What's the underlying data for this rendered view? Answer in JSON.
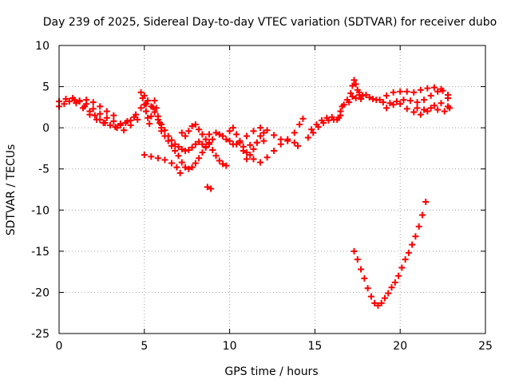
{
  "chart_data": {
    "type": "scatter",
    "title": "Day 239 of 2025, Sidereal Day-to-day VTEC variation (SDTVAR) for receiver dubo",
    "xlabel": "GPS time / hours",
    "ylabel": "SDTVAR / TECUs",
    "xlim": [
      0,
      25
    ],
    "ylim": [
      -25,
      10
    ],
    "xticks": [
      0,
      5,
      10,
      15,
      20,
      25
    ],
    "yticks": [
      -25,
      -20,
      -15,
      -10,
      -5,
      0,
      5,
      10
    ],
    "grid": true,
    "marker": "+",
    "series_color": "#ff0000",
    "series": [
      {
        "name": "SDTVAR",
        "points": [
          [
            0.0,
            2.6
          ],
          [
            0.3,
            2.9
          ],
          [
            0.6,
            3.2
          ],
          [
            0.9,
            3.4
          ],
          [
            1.2,
            3.2
          ],
          [
            1.5,
            2.6
          ],
          [
            1.8,
            2.0
          ],
          [
            2.1,
            1.5
          ],
          [
            2.4,
            1.0
          ],
          [
            2.7,
            0.6
          ],
          [
            3.0,
            0.3
          ],
          [
            3.3,
            0.1
          ],
          [
            3.6,
            0.3
          ],
          [
            3.9,
            0.6
          ],
          [
            4.2,
            0.9
          ],
          [
            4.5,
            1.6
          ],
          [
            4.8,
            2.4
          ],
          [
            5.1,
            2.9
          ],
          [
            0.0,
            3.2
          ],
          [
            0.4,
            3.5
          ],
          [
            0.8,
            3.6
          ],
          [
            1.2,
            3.3
          ],
          [
            1.6,
            2.9
          ],
          [
            2.0,
            2.3
          ],
          [
            2.4,
            1.7
          ],
          [
            2.8,
            1.2
          ],
          [
            3.2,
            0.8
          ],
          [
            3.6,
            0.5
          ],
          [
            4.0,
            0.8
          ],
          [
            4.4,
            1.3
          ],
          [
            1.0,
            3.0
          ],
          [
            1.4,
            2.4
          ],
          [
            1.8,
            1.6
          ],
          [
            2.2,
            1.0
          ],
          [
            2.6,
            0.6
          ],
          [
            3.0,
            0.3
          ],
          [
            3.4,
            0.0
          ],
          [
            3.8,
            -0.3
          ],
          [
            4.2,
            0.3
          ],
          [
            4.6,
            1.0
          ],
          [
            1.6,
            3.4
          ],
          [
            2.0,
            3.1
          ],
          [
            2.4,
            2.6
          ],
          [
            2.8,
            2.0
          ],
          [
            3.2,
            1.5
          ],
          [
            4.8,
            4.3
          ],
          [
            4.9,
            3.6
          ],
          [
            5.0,
            2.8
          ],
          [
            5.1,
            2.0
          ],
          [
            5.2,
            1.2
          ],
          [
            5.3,
            0.5
          ],
          [
            5.4,
            1.4
          ],
          [
            5.5,
            2.5
          ],
          [
            5.6,
            3.3
          ],
          [
            5.7,
            2.4
          ],
          [
            5.8,
            1.4
          ],
          [
            5.9,
            0.6
          ],
          [
            6.0,
            0.0
          ],
          [
            5.0,
            3.9
          ],
          [
            5.2,
            3.3
          ],
          [
            5.4,
            2.6
          ],
          [
            5.6,
            1.9
          ],
          [
            5.8,
            1.0
          ],
          [
            6.0,
            0.4
          ],
          [
            6.2,
            -0.3
          ],
          [
            6.4,
            -1.0
          ],
          [
            6.6,
            -1.5
          ],
          [
            6.8,
            -2.0
          ],
          [
            7.0,
            -2.3
          ],
          [
            7.2,
            -2.6
          ],
          [
            7.4,
            -2.8
          ],
          [
            7.6,
            -2.7
          ],
          [
            7.8,
            -2.4
          ],
          [
            8.0,
            -2.0
          ],
          [
            8.2,
            -1.7
          ],
          [
            8.4,
            -2.0
          ],
          [
            8.6,
            -2.3
          ],
          [
            6.0,
            -0.4
          ],
          [
            6.2,
            -1.0
          ],
          [
            6.4,
            -1.6
          ],
          [
            6.6,
            -2.2
          ],
          [
            6.8,
            -2.8
          ],
          [
            7.0,
            -3.4
          ],
          [
            7.2,
            -4.2
          ],
          [
            7.4,
            -4.8
          ],
          [
            7.6,
            -5.0
          ],
          [
            7.8,
            -4.8
          ],
          [
            8.0,
            -4.3
          ],
          [
            8.2,
            -3.7
          ],
          [
            8.4,
            -3.0
          ],
          [
            8.6,
            -2.4
          ],
          [
            8.8,
            -1.8
          ],
          [
            9.0,
            -1.4
          ],
          [
            5.0,
            -3.3
          ],
          [
            5.4,
            -3.5
          ],
          [
            5.8,
            -3.7
          ],
          [
            6.2,
            -3.9
          ],
          [
            6.6,
            -4.3
          ],
          [
            6.9,
            -4.8
          ],
          [
            7.1,
            -5.5
          ],
          [
            7.2,
            -0.6
          ],
          [
            7.4,
            -1.0
          ],
          [
            7.6,
            -0.4
          ],
          [
            7.8,
            0.2
          ],
          [
            8.0,
            0.4
          ],
          [
            8.2,
            -0.2
          ],
          [
            8.4,
            -0.8
          ],
          [
            8.6,
            -1.4
          ],
          [
            8.8,
            -2.0
          ],
          [
            9.0,
            -2.7
          ],
          [
            9.2,
            -3.4
          ],
          [
            9.4,
            -4.0
          ],
          [
            9.6,
            -4.4
          ],
          [
            9.8,
            -4.6
          ],
          [
            8.8,
            -0.8
          ],
          [
            9.2,
            -0.6
          ],
          [
            9.6,
            -1.0
          ],
          [
            10.0,
            -1.6
          ],
          [
            10.4,
            -2.0
          ],
          [
            10.8,
            -2.3
          ],
          [
            11.2,
            -2.1
          ],
          [
            11.6,
            -1.8
          ],
          [
            12.0,
            -1.6
          ],
          [
            9.4,
            -0.8
          ],
          [
            9.8,
            -1.4
          ],
          [
            10.2,
            -2.0
          ],
          [
            10.6,
            -1.6
          ],
          [
            11.0,
            -1.0
          ],
          [
            11.4,
            -0.4
          ],
          [
            11.8,
            0.0
          ],
          [
            12.2,
            -0.3
          ],
          [
            12.6,
            -0.9
          ],
          [
            13.0,
            -1.4
          ],
          [
            13.4,
            -1.6
          ],
          [
            13.8,
            -1.8
          ],
          [
            14.0,
            -2.2
          ],
          [
            10.0,
            -0.4
          ],
          [
            10.2,
            0.0
          ],
          [
            10.4,
            -0.8
          ],
          [
            10.6,
            -1.8
          ],
          [
            10.8,
            -2.8
          ],
          [
            11.0,
            -3.8
          ],
          [
            11.2,
            -3.3
          ],
          [
            11.4,
            -2.6
          ],
          [
            11.6,
            -1.8
          ],
          [
            11.8,
            -1.0
          ],
          [
            12.0,
            -0.6
          ],
          [
            11.0,
            -3.0
          ],
          [
            11.4,
            -3.8
          ],
          [
            11.8,
            -4.2
          ],
          [
            12.2,
            -3.6
          ],
          [
            12.6,
            -2.8
          ],
          [
            13.0,
            -2.0
          ],
          [
            13.4,
            -1.4
          ],
          [
            13.8,
            -0.6
          ],
          [
            14.1,
            0.4
          ],
          [
            14.3,
            1.1
          ],
          [
            8.7,
            -7.2
          ],
          [
            8.9,
            -7.4
          ],
          [
            14.6,
            -1.2
          ],
          [
            14.9,
            -0.6
          ],
          [
            15.2,
            0.1
          ],
          [
            15.5,
            0.6
          ],
          [
            15.8,
            0.9
          ],
          [
            16.1,
            1.0
          ],
          [
            16.4,
            1.2
          ],
          [
            14.8,
            -0.2
          ],
          [
            15.1,
            0.4
          ],
          [
            15.4,
            0.9
          ],
          [
            15.7,
            1.2
          ],
          [
            16.0,
            1.3
          ],
          [
            16.3,
            1.0
          ],
          [
            16.5,
            1.5
          ],
          [
            16.5,
            2.0
          ],
          [
            16.7,
            2.8
          ],
          [
            16.9,
            3.4
          ],
          [
            17.1,
            4.2
          ],
          [
            17.2,
            5.1
          ],
          [
            17.3,
            5.8
          ],
          [
            17.4,
            5.3
          ],
          [
            17.5,
            4.6
          ],
          [
            17.6,
            4.0
          ],
          [
            17.7,
            3.5
          ],
          [
            16.6,
            2.6
          ],
          [
            17.0,
            3.1
          ],
          [
            17.4,
            3.6
          ],
          [
            17.8,
            3.9
          ],
          [
            18.2,
            3.7
          ],
          [
            18.6,
            3.4
          ],
          [
            19.0,
            3.1
          ],
          [
            19.4,
            3.0
          ],
          [
            19.8,
            3.2
          ],
          [
            20.2,
            3.4
          ],
          [
            20.6,
            3.3
          ],
          [
            21.0,
            3.1
          ],
          [
            21.4,
            3.4
          ],
          [
            21.8,
            3.9
          ],
          [
            22.2,
            4.4
          ],
          [
            22.5,
            4.5
          ],
          [
            22.8,
            3.6
          ],
          [
            17.2,
            3.8
          ],
          [
            17.6,
            4.3
          ],
          [
            18.0,
            4.0
          ],
          [
            18.4,
            3.5
          ],
          [
            18.8,
            3.4
          ],
          [
            19.2,
            3.9
          ],
          [
            19.6,
            4.3
          ],
          [
            20.0,
            4.4
          ],
          [
            20.4,
            4.4
          ],
          [
            20.8,
            4.3
          ],
          [
            19.2,
            2.4
          ],
          [
            19.6,
            2.8
          ],
          [
            20.0,
            2.9
          ],
          [
            20.4,
            2.3
          ],
          [
            20.8,
            1.9
          ],
          [
            21.2,
            1.6
          ],
          [
            21.6,
            2.0
          ],
          [
            22.0,
            2.7
          ],
          [
            22.4,
            3.0
          ],
          [
            22.8,
            2.6
          ],
          [
            21.0,
            2.4
          ],
          [
            21.4,
            2.2
          ],
          [
            21.8,
            2.4
          ],
          [
            22.2,
            2.2
          ],
          [
            22.6,
            2.0
          ],
          [
            22.9,
            2.4
          ],
          [
            21.2,
            4.6
          ],
          [
            21.6,
            4.8
          ],
          [
            22.0,
            4.9
          ],
          [
            22.4,
            4.7
          ],
          [
            22.8,
            4.0
          ],
          [
            17.3,
            -15.0
          ],
          [
            17.5,
            -16.0
          ],
          [
            17.7,
            -17.2
          ],
          [
            17.9,
            -18.3
          ],
          [
            18.1,
            -19.5
          ],
          [
            18.3,
            -20.5
          ],
          [
            18.5,
            -21.3
          ],
          [
            18.7,
            -21.6
          ],
          [
            18.9,
            -21.3
          ],
          [
            19.1,
            -20.7
          ],
          [
            19.3,
            -20.1
          ],
          [
            19.5,
            -19.4
          ],
          [
            19.7,
            -18.8
          ],
          [
            19.9,
            -18.0
          ],
          [
            20.1,
            -17.0
          ],
          [
            20.3,
            -16.0
          ],
          [
            20.5,
            -15.2
          ],
          [
            20.7,
            -14.2
          ],
          [
            20.9,
            -13.2
          ],
          [
            21.1,
            -12.0
          ],
          [
            21.3,
            -10.6
          ],
          [
            21.5,
            -9.0
          ]
        ]
      }
    ]
  }
}
